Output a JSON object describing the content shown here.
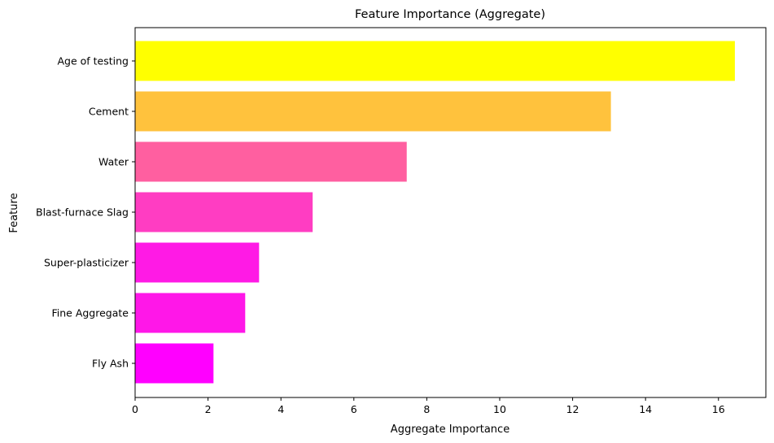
{
  "chart_data": {
    "type": "bar",
    "orientation": "horizontal",
    "title": "Feature Importance (Aggregate)",
    "xlabel": "Aggregate Importance",
    "ylabel": "Feature",
    "categories": [
      "Age of testing",
      "Cement",
      "Water",
      "Blast-furnace Slag",
      "Super-plasticizer",
      "Fine Aggregate",
      "Fly Ash"
    ],
    "values": [
      16.45,
      13.05,
      7.45,
      4.87,
      3.4,
      3.02,
      2.15
    ],
    "colors": [
      "#ffff00",
      "#ffc23d",
      "#ff5fa0",
      "#ff3dc2",
      "#ff1ae5",
      "#ff17e8",
      "#ff00ff"
    ],
    "xlim": [
      0,
      17.3
    ],
    "xticks": [
      0,
      2,
      4,
      6,
      8,
      10,
      12,
      14,
      16
    ],
    "grid": false
  }
}
